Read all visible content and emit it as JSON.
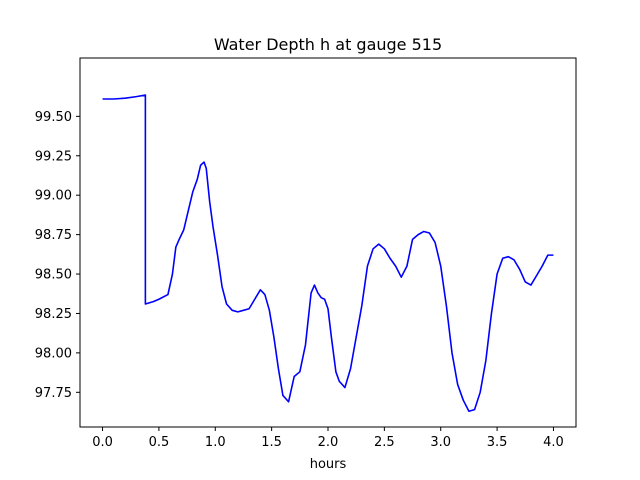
{
  "chart_data": {
    "type": "line",
    "title": "Water Depth h at gauge 515",
    "xlabel": "hours",
    "ylabel": "",
    "xlim": [
      -0.2,
      4.2
    ],
    "ylim": [
      97.53,
      99.87
    ],
    "xticks": [
      0.0,
      0.5,
      1.0,
      1.5,
      2.0,
      2.5,
      3.0,
      3.5,
      4.0
    ],
    "xtick_labels": [
      "0.0",
      "0.5",
      "1.0",
      "1.5",
      "2.0",
      "2.5",
      "3.0",
      "3.5",
      "4.0"
    ],
    "yticks": [
      97.75,
      98.0,
      98.25,
      98.5,
      98.75,
      99.0,
      99.25,
      99.5
    ],
    "ytick_labels": [
      "97.75",
      "98.00",
      "98.25",
      "98.50",
      "98.75",
      "99.00",
      "99.25",
      "99.50"
    ],
    "grid": false,
    "series": [
      {
        "color": "#0000ff",
        "x": [
          0.0,
          0.1,
          0.2,
          0.3,
          0.38,
          0.38,
          0.45,
          0.5,
          0.58,
          0.62,
          0.65,
          0.68,
          0.72,
          0.77,
          0.8,
          0.84,
          0.87,
          0.9,
          0.92,
          0.95,
          0.98,
          1.02,
          1.06,
          1.1,
          1.15,
          1.2,
          1.25,
          1.3,
          1.35,
          1.4,
          1.44,
          1.48,
          1.52,
          1.56,
          1.6,
          1.65,
          1.7,
          1.75,
          1.8,
          1.85,
          1.88,
          1.91,
          1.94,
          1.97,
          2.0,
          2.03,
          2.07,
          2.1,
          2.15,
          2.2,
          2.25,
          2.3,
          2.35,
          2.4,
          2.45,
          2.5,
          2.55,
          2.6,
          2.65,
          2.7,
          2.75,
          2.8,
          2.85,
          2.9,
          2.95,
          3.0,
          3.05,
          3.1,
          3.15,
          3.2,
          3.25,
          3.3,
          3.35,
          3.4,
          3.45,
          3.5,
          3.55,
          3.6,
          3.65,
          3.7,
          3.75,
          3.8,
          3.85,
          3.9,
          3.95,
          4.0
        ],
        "y": [
          99.61,
          99.61,
          99.615,
          99.625,
          99.635,
          98.31,
          98.325,
          98.34,
          98.37,
          98.5,
          98.67,
          98.72,
          98.78,
          98.93,
          99.02,
          99.1,
          99.19,
          99.21,
          99.17,
          98.96,
          98.8,
          98.62,
          98.42,
          98.31,
          98.27,
          98.26,
          98.27,
          98.28,
          98.34,
          98.4,
          98.37,
          98.27,
          98.1,
          97.9,
          97.73,
          97.69,
          97.85,
          97.88,
          98.05,
          98.38,
          98.43,
          98.38,
          98.35,
          98.34,
          98.28,
          98.1,
          97.88,
          97.82,
          97.78,
          97.9,
          98.1,
          98.3,
          98.55,
          98.66,
          98.69,
          98.66,
          98.6,
          98.55,
          98.48,
          98.55,
          98.72,
          98.75,
          98.77,
          98.76,
          98.7,
          98.55,
          98.3,
          98.0,
          97.8,
          97.7,
          97.63,
          97.64,
          97.75,
          97.95,
          98.25,
          98.5,
          98.6,
          98.61,
          98.59,
          98.53,
          98.45,
          98.43,
          98.49,
          98.55,
          98.62,
          98.62
        ]
      }
    ]
  }
}
